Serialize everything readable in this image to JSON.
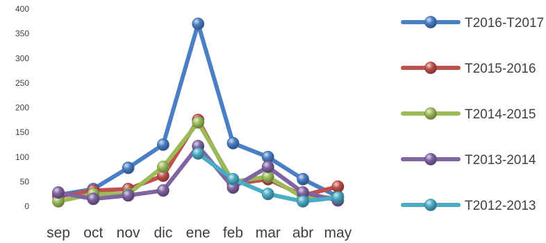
{
  "chart_data": {
    "type": "line",
    "title": "",
    "xlabel": "",
    "ylabel": "",
    "categories": [
      "sep",
      "oct",
      "nov",
      "dic",
      "ene",
      "feb",
      "mar",
      "abr",
      "may"
    ],
    "ylim": [
      0,
      400
    ],
    "yticks": [
      "0",
      "50",
      "100",
      "150",
      "200",
      "250",
      "300",
      "350",
      "400"
    ],
    "grid": false,
    "legend_position": "right",
    "series": [
      {
        "name": "T2016-T2017",
        "color": "#4A7EC5",
        "values": [
          23,
          35,
          78,
          125,
          370,
          128,
          100,
          55,
          20
        ]
      },
      {
        "name": "T2015-2016",
        "color": "#C0504D",
        "values": [
          20,
          32,
          35,
          62,
          175,
          45,
          55,
          22,
          40
        ]
      },
      {
        "name": "T2014-2015",
        "color": "#9BBB59",
        "values": [
          10,
          25,
          25,
          80,
          170,
          50,
          60,
          18,
          18
        ]
      },
      {
        "name": "T2013-2014",
        "color": "#8064A2",
        "values": [
          28,
          15,
          22,
          32,
          122,
          38,
          80,
          28,
          12
        ]
      },
      {
        "name": "T2012-2013",
        "color": "#4BACC6",
        "values": [
          null,
          null,
          null,
          null,
          107,
          55,
          25,
          10,
          18
        ]
      }
    ]
  }
}
